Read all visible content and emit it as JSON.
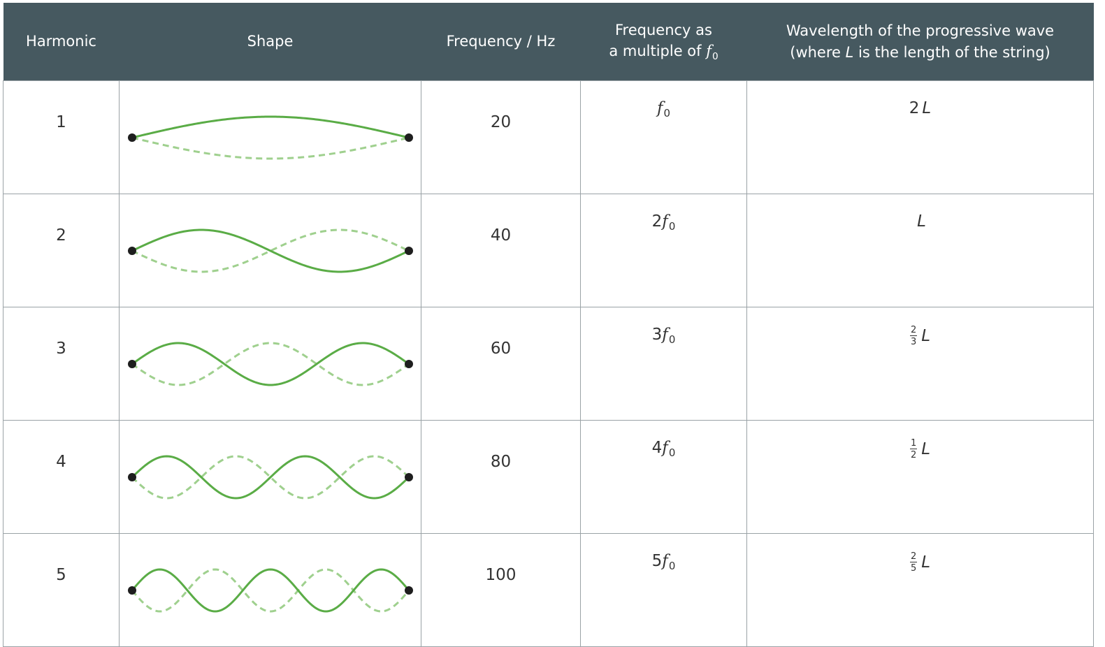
{
  "table": {
    "headers": {
      "harmonic": "Harmonic",
      "shape": "Shape",
      "frequency": "Frequency / Hz",
      "multiple_line1": "Frequency as",
      "multiple_line2": "a multiple of ",
      "multiple_symbol": "f",
      "multiple_sub": "0",
      "wavelength_line1": "Wavelength of the progressive wave",
      "wavelength_open": "(where ",
      "wavelength_L": "L",
      "wavelength_close": " is the length of the string)"
    },
    "rows": [
      {
        "harmonic": "1",
        "frequency": "20",
        "coef": "",
        "f": "f",
        "sub": "0",
        "wl_prefix": "2",
        "wl_num": "",
        "wl_den": "",
        "wl_L": "L"
      },
      {
        "harmonic": "2",
        "frequency": "40",
        "coef": "2",
        "f": "f",
        "sub": "0",
        "wl_prefix": "",
        "wl_num": "",
        "wl_den": "",
        "wl_L": "L"
      },
      {
        "harmonic": "3",
        "frequency": "60",
        "coef": "3",
        "f": "f",
        "sub": "0",
        "wl_prefix": "",
        "wl_num": "2",
        "wl_den": "3",
        "wl_L": "L"
      },
      {
        "harmonic": "4",
        "frequency": "80",
        "coef": "4",
        "f": "f",
        "sub": "0",
        "wl_prefix": "",
        "wl_num": "1",
        "wl_den": "2",
        "wl_L": "L"
      },
      {
        "harmonic": "5",
        "frequency": "100",
        "coef": "5",
        "f": "f",
        "sub": "0",
        "wl_prefix": "",
        "wl_num": "2",
        "wl_den": "5",
        "wl_L": "L"
      }
    ]
  },
  "colors": {
    "header_bg": "#465960",
    "wave": "#5aac46",
    "wave_dashed": "#9fd08e",
    "endpoint": "#1e1e1e"
  }
}
